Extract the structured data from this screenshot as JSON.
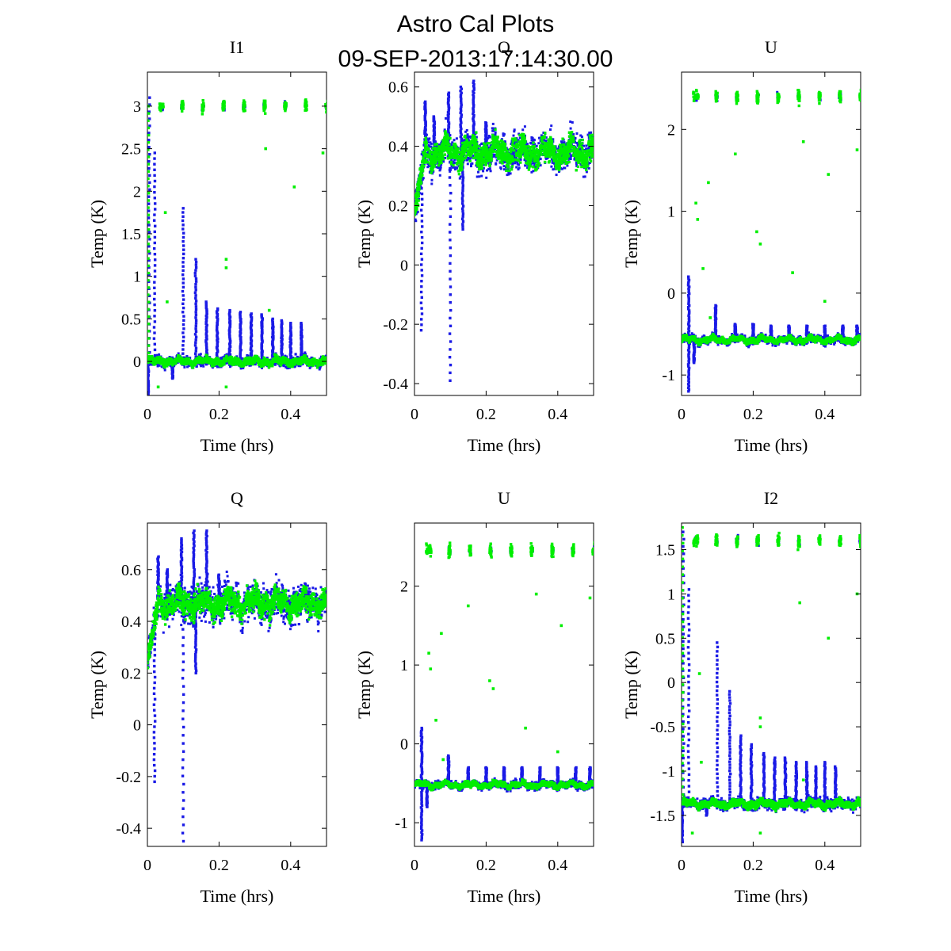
{
  "figure": {
    "title_line1": "Astro Cal Plots",
    "title_line2": "09-SEP-2013:17:14:30.00"
  },
  "colors": {
    "series_a": "#1a1ae6",
    "series_b": "#00ee00"
  },
  "chart_data": [
    {
      "type": "scatter",
      "title": "I1",
      "xlabel": "Time (hrs)",
      "ylabel": "Temp (K)",
      "xlim": [
        0,
        0.5
      ],
      "ylim": [
        -0.4,
        3.4
      ],
      "xticks": [
        0,
        0.2,
        0.4
      ],
      "xtick_labels": [
        "0",
        "0.2",
        "0.4"
      ],
      "yticks": [
        0,
        0.5,
        1,
        1.5,
        2,
        2.5,
        3
      ],
      "ytick_labels": [
        "0",
        "0.5",
        "1",
        "1.5",
        "2",
        "2.5",
        "3"
      ],
      "baseline": 0.0,
      "noise": 0.05,
      "cal_level": 3.0,
      "spikes_a": [
        [
          0.005,
          3.1
        ],
        [
          0.02,
          2.45
        ],
        [
          0.1,
          1.8
        ],
        [
          0.135,
          1.2
        ],
        [
          0.165,
          0.7
        ],
        [
          0.195,
          0.62
        ],
        [
          0.23,
          0.6
        ],
        [
          0.26,
          0.58
        ],
        [
          0.29,
          0.56
        ],
        [
          0.32,
          0.55
        ],
        [
          0.35,
          0.5
        ],
        [
          0.375,
          0.48
        ],
        [
          0.4,
          0.45
        ],
        [
          0.43,
          0.45
        ]
      ],
      "spikes_b": [
        [
          0.003,
          3.0
        ]
      ],
      "dips_a": [
        [
          0.002,
          -0.38
        ],
        [
          0.07,
          -0.2
        ]
      ],
      "settle": {
        "start": 0.02,
        "tau": 0.015
      },
      "outliers_b": [
        [
          0.05,
          1.75
        ],
        [
          0.055,
          0.7
        ],
        [
          0.22,
          1.2
        ],
        [
          0.22,
          1.1
        ],
        [
          0.34,
          0.6
        ],
        [
          0.33,
          2.5
        ],
        [
          0.41,
          2.05
        ],
        [
          0.49,
          2.45
        ],
        [
          0.03,
          -0.3
        ],
        [
          0.22,
          -0.3
        ]
      ]
    },
    {
      "type": "scatter",
      "title": "Q",
      "xlabel": "Time (hrs)",
      "ylabel": "Temp (K)",
      "xlim": [
        0,
        0.5
      ],
      "ylim": [
        -0.44,
        0.65
      ],
      "xticks": [
        0,
        0.2,
        0.4
      ],
      "xtick_labels": [
        "0",
        "0.2",
        "0.4"
      ],
      "yticks": [
        -0.4,
        -0.2,
        0,
        0.2,
        0.4,
        0.6
      ],
      "ytick_labels": [
        "-0.4",
        "-0.2",
        "0",
        "0.2",
        "0.4",
        "0.6"
      ],
      "baseline": 0.38,
      "noise": 0.05,
      "cal_level": null,
      "spikes_a": [
        [
          0.03,
          0.55
        ],
        [
          0.055,
          0.5
        ],
        [
          0.095,
          0.58
        ],
        [
          0.13,
          0.6
        ],
        [
          0.165,
          0.62
        ],
        [
          0.2,
          0.48
        ]
      ],
      "spikes_b": [],
      "dips_a": [
        [
          0.02,
          -0.22
        ],
        [
          0.1,
          -0.39
        ],
        [
          0.135,
          0.12
        ]
      ],
      "settle": {
        "start": 0.0,
        "tau": 0.01,
        "from": 0.18
      },
      "outliers_b": [
        [
          0.01,
          0.2
        ],
        [
          0.02,
          0.3
        ]
      ]
    },
    {
      "type": "scatter",
      "title": "U",
      "xlabel": "Time (hrs)",
      "ylabel": "Temp (K)",
      "xlim": [
        0,
        0.5
      ],
      "ylim": [
        -1.25,
        2.7
      ],
      "xticks": [
        0,
        0.2,
        0.4
      ],
      "xtick_labels": [
        "0",
        "0.2",
        "0.4"
      ],
      "yticks": [
        -1,
        0,
        1,
        2
      ],
      "ytick_labels": [
        "-1",
        "0",
        "1",
        "2"
      ],
      "baseline": -0.57,
      "noise": 0.04,
      "cal_level": 2.4,
      "spikes_a": [
        [
          0.02,
          0.2
        ],
        [
          0.095,
          -0.15
        ],
        [
          0.15,
          -0.38
        ],
        [
          0.2,
          -0.38
        ],
        [
          0.25,
          -0.4
        ],
        [
          0.3,
          -0.4
        ],
        [
          0.35,
          -0.4
        ],
        [
          0.4,
          -0.4
        ],
        [
          0.45,
          -0.4
        ],
        [
          0.49,
          -0.4
        ]
      ],
      "spikes_b": [],
      "dips_a": [
        [
          0.02,
          -1.2
        ],
        [
          0.035,
          -0.85
        ]
      ],
      "settle": null,
      "outliers_b": [
        [
          0.04,
          1.1
        ],
        [
          0.045,
          0.9
        ],
        [
          0.06,
          0.3
        ],
        [
          0.075,
          1.35
        ],
        [
          0.08,
          -0.3
        ],
        [
          0.15,
          1.7
        ],
        [
          0.21,
          0.75
        ],
        [
          0.22,
          0.6
        ],
        [
          0.31,
          0.25
        ],
        [
          0.34,
          1.85
        ],
        [
          0.41,
          1.45
        ],
        [
          0.4,
          -0.1
        ],
        [
          0.49,
          1.75
        ]
      ]
    },
    {
      "type": "scatter",
      "title": "Q",
      "xlabel": "Time (hrs)",
      "ylabel": "Temp (K)",
      "xlim": [
        0,
        0.5
      ],
      "ylim": [
        -0.47,
        0.78
      ],
      "xticks": [
        0,
        0.2,
        0.4
      ],
      "xtick_labels": [
        "0",
        "0.2",
        "0.4"
      ],
      "yticks": [
        -0.4,
        -0.2,
        0,
        0.2,
        0.4,
        0.6
      ],
      "ytick_labels": [
        "-0.4",
        "-0.2",
        "0",
        "0.2",
        "0.4",
        "0.6"
      ],
      "baseline": 0.47,
      "noise": 0.06,
      "cal_level": null,
      "spikes_a": [
        [
          0.03,
          0.65
        ],
        [
          0.055,
          0.6
        ],
        [
          0.095,
          0.72
        ],
        [
          0.13,
          0.75
        ],
        [
          0.165,
          0.75
        ],
        [
          0.2,
          0.58
        ]
      ],
      "spikes_b": [],
      "dips_a": [
        [
          0.02,
          -0.22
        ],
        [
          0.1,
          -0.45
        ],
        [
          0.135,
          0.2
        ]
      ],
      "settle": {
        "start": 0.0,
        "tau": 0.01,
        "from": 0.25
      },
      "outliers_b": [
        [
          0.01,
          0.3
        ],
        [
          0.02,
          0.4
        ]
      ]
    },
    {
      "type": "scatter",
      "title": "U",
      "xlabel": "Time (hrs)",
      "ylabel": "Temp (K)",
      "xlim": [
        0,
        0.5
      ],
      "ylim": [
        -1.3,
        2.8
      ],
      "xticks": [
        0,
        0.2,
        0.4
      ],
      "xtick_labels": [
        "0",
        "0.2",
        "0.4"
      ],
      "yticks": [
        -1,
        0,
        1,
        2
      ],
      "ytick_labels": [
        "-1",
        "0",
        "1",
        "2"
      ],
      "baseline": -0.52,
      "noise": 0.04,
      "cal_level": 2.45,
      "spikes_a": [
        [
          0.02,
          0.2
        ],
        [
          0.095,
          -0.15
        ],
        [
          0.15,
          -0.3
        ],
        [
          0.2,
          -0.3
        ],
        [
          0.25,
          -0.3
        ],
        [
          0.3,
          -0.3
        ],
        [
          0.35,
          -0.3
        ],
        [
          0.4,
          -0.3
        ],
        [
          0.45,
          -0.3
        ],
        [
          0.49,
          -0.3
        ]
      ],
      "spikes_b": [],
      "dips_a": [
        [
          0.02,
          -1.22
        ],
        [
          0.035,
          -0.8
        ]
      ],
      "settle": null,
      "outliers_b": [
        [
          0.04,
          1.15
        ],
        [
          0.045,
          0.95
        ],
        [
          0.06,
          0.3
        ],
        [
          0.075,
          1.4
        ],
        [
          0.08,
          -0.2
        ],
        [
          0.15,
          1.75
        ],
        [
          0.21,
          0.8
        ],
        [
          0.22,
          0.7
        ],
        [
          0.31,
          0.2
        ],
        [
          0.34,
          1.9
        ],
        [
          0.41,
          1.5
        ],
        [
          0.4,
          -0.1
        ],
        [
          0.49,
          1.85
        ]
      ]
    },
    {
      "type": "scatter",
      "title": "I2",
      "xlabel": "Time (hrs)",
      "ylabel": "Temp (K)",
      "xlim": [
        0,
        0.5
      ],
      "ylim": [
        -1.85,
        1.8
      ],
      "xticks": [
        0,
        0.2,
        0.4
      ],
      "xtick_labels": [
        "0",
        "0.2",
        "0.4"
      ],
      "yticks": [
        -1.5,
        -1,
        -0.5,
        0,
        0.5,
        1,
        1.5
      ],
      "ytick_labels": [
        "-1.5",
        "-1",
        "-0.5",
        "0",
        "0.5",
        "1",
        "1.5"
      ],
      "baseline": -1.37,
      "noise": 0.05,
      "cal_level": 1.6,
      "spikes_a": [
        [
          0.005,
          1.7
        ],
        [
          0.02,
          1.05
        ],
        [
          0.1,
          0.45
        ],
        [
          0.135,
          -0.1
        ],
        [
          0.165,
          -0.6
        ],
        [
          0.195,
          -0.7
        ],
        [
          0.23,
          -0.8
        ],
        [
          0.26,
          -0.85
        ],
        [
          0.29,
          -0.85
        ],
        [
          0.32,
          -0.9
        ],
        [
          0.35,
          -0.9
        ],
        [
          0.375,
          -0.95
        ],
        [
          0.4,
          -0.9
        ],
        [
          0.43,
          -0.95
        ]
      ],
      "spikes_b": [
        [
          0.003,
          1.75
        ]
      ],
      "dips_a": [
        [
          0.002,
          -1.8
        ],
        [
          0.07,
          -1.5
        ]
      ],
      "settle": {
        "start": 0.02,
        "tau": 0.015
      },
      "outliers_b": [
        [
          0.05,
          0.1
        ],
        [
          0.055,
          -0.9
        ],
        [
          0.22,
          -0.4
        ],
        [
          0.22,
          -0.5
        ],
        [
          0.34,
          -1.1
        ],
        [
          0.33,
          0.9
        ],
        [
          0.41,
          0.5
        ],
        [
          0.49,
          1.0
        ],
        [
          0.03,
          -1.7
        ],
        [
          0.22,
          -1.7
        ]
      ]
    }
  ]
}
